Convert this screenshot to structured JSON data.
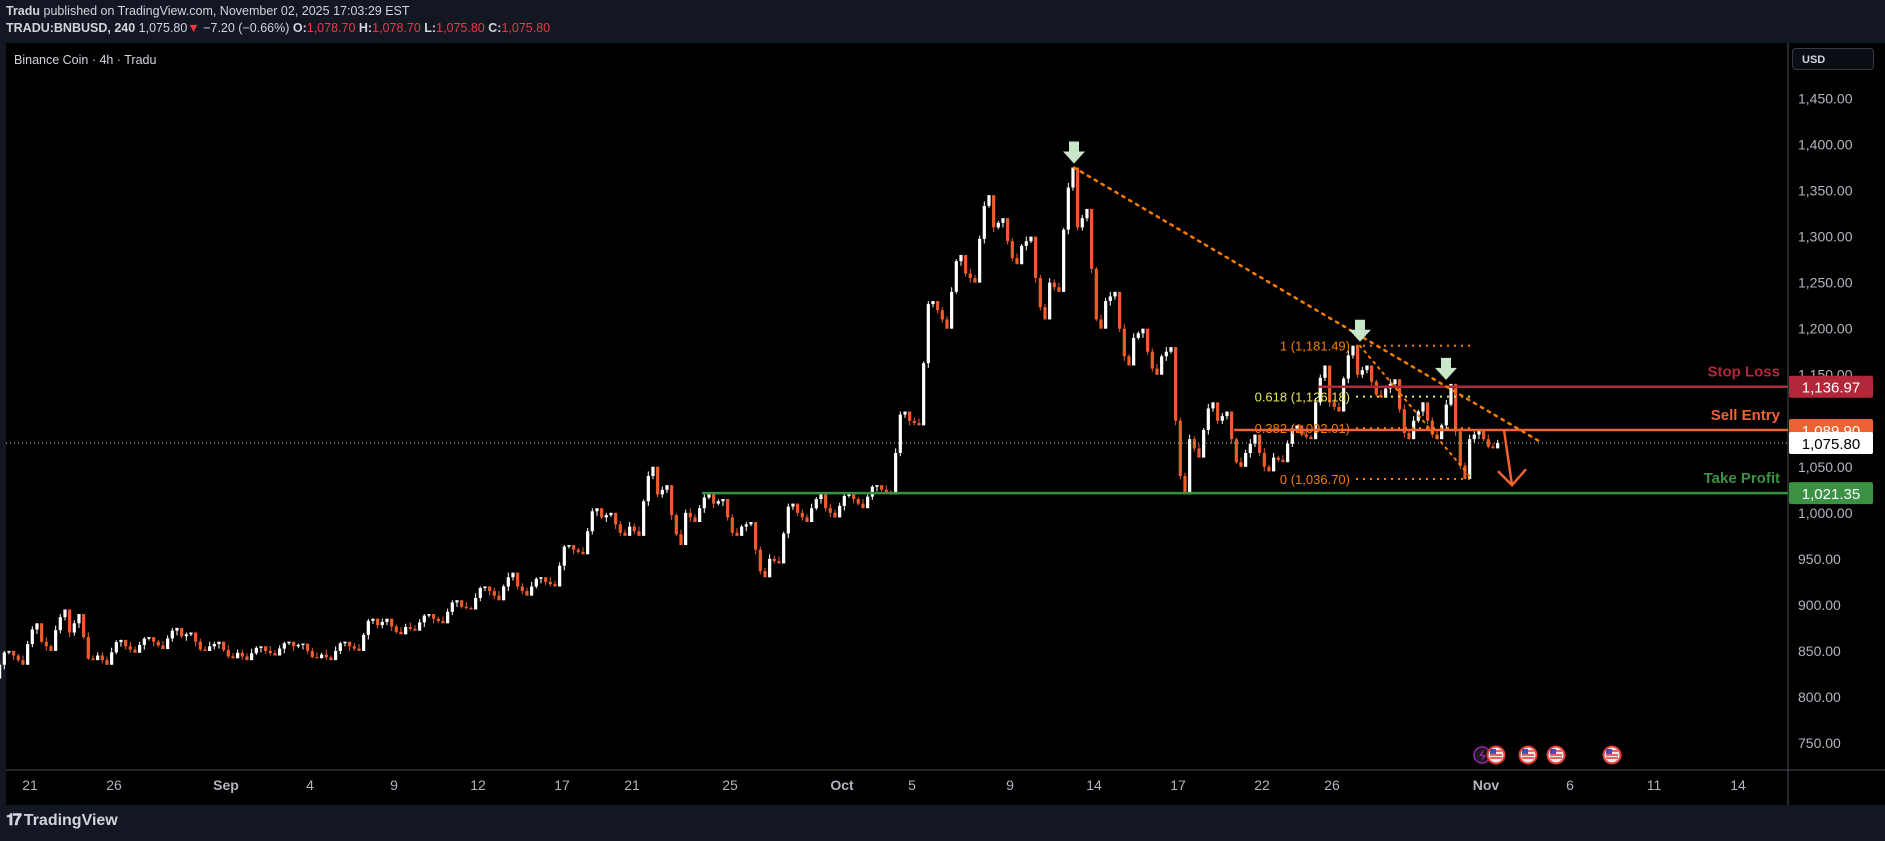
{
  "header": {
    "publisher": "Tradu",
    "published_text": "published on TradingView.com, November 02, 2025 17:03:29 EST",
    "symbol": "TRADU:BNBUSD, 240",
    "last": "1,075.80",
    "change": "−7.20 (−0.66%)",
    "o_label": "O:",
    "o": "1,078.70",
    "h_label": "H:",
    "h": "1,078.70",
    "l_label": "L:",
    "l": "1,075.80",
    "c_label": "C:",
    "c": "1,075.80"
  },
  "chart_title": "Binance Coin · 4h · Tradu",
  "currency_button": "USD",
  "footer": {
    "brand": "TradingView",
    "logo": "17"
  },
  "colors": {
    "up": "#ffffff",
    "down": "#ef5b2c",
    "stop": "#b2283a",
    "entry": "#f06231",
    "take": "#3b9144",
    "fib": "#f57c00",
    "fib618": "#e6e65c",
    "arrow": "#c8e6c9",
    "bg": "#000000"
  },
  "chart_data": {
    "type": "candlestick",
    "timeframe": "4h",
    "ylim": [
      730,
      1470
    ],
    "price_ticks": [
      "1,450.00",
      "1,400.00",
      "1,350.00",
      "1,300.00",
      "1,250.00",
      "1,200.00",
      "1,150.00",
      "1,050.00",
      "1,000.00",
      "950.00",
      "900.00",
      "850.00",
      "800.00",
      "750.00"
    ],
    "price_tick_values": [
      1450,
      1400,
      1350,
      1300,
      1250,
      1200,
      1150,
      1050,
      1000,
      950,
      900,
      850,
      800,
      750
    ],
    "time_ticks": [
      {
        "label": "21",
        "date": "2025-08-21"
      },
      {
        "label": "26",
        "date": "2025-08-26"
      },
      {
        "label": "Sep",
        "date": "2025-09-01",
        "bold": true
      },
      {
        "label": "4",
        "date": "2025-09-04"
      },
      {
        "label": "9",
        "date": "2025-09-09"
      },
      {
        "label": "12",
        "date": "2025-09-12"
      },
      {
        "label": "17",
        "date": "2025-09-17"
      },
      {
        "label": "21",
        "date": "2025-09-21"
      },
      {
        "label": "25",
        "date": "2025-09-25"
      },
      {
        "label": "Oct",
        "date": "2025-10-01",
        "bold": true
      },
      {
        "label": "5",
        "date": "2025-10-05"
      },
      {
        "label": "9",
        "date": "2025-10-09"
      },
      {
        "label": "14",
        "date": "2025-10-14"
      },
      {
        "label": "17",
        "date": "2025-10-17"
      },
      {
        "label": "22",
        "date": "2025-10-22"
      },
      {
        "label": "26",
        "date": "2025-10-26"
      },
      {
        "label": "Nov",
        "date": "2025-11-03",
        "bold": true
      },
      {
        "label": "6",
        "date": "2025-11-06"
      },
      {
        "label": "11",
        "date": "2025-11-11"
      },
      {
        "label": "14",
        "date": "2025-11-14"
      }
    ],
    "candles_daily_ohlc": [
      [
        "2025-08-20",
        830,
        850,
        820,
        845
      ],
      [
        "2025-08-21",
        845,
        880,
        835,
        860
      ],
      [
        "2025-08-22",
        860,
        895,
        850,
        870
      ],
      [
        "2025-08-25",
        870,
        890,
        840,
        845
      ],
      [
        "2025-08-26",
        845,
        862,
        835,
        855
      ],
      [
        "2025-08-27",
        855,
        865,
        848,
        860
      ],
      [
        "2025-08-28",
        860,
        875,
        852,
        866
      ],
      [
        "2025-08-29",
        866,
        870,
        850,
        855
      ],
      [
        "2025-09-01",
        855,
        860,
        842,
        848
      ],
      [
        "2025-09-02",
        848,
        855,
        840,
        850
      ],
      [
        "2025-09-03",
        850,
        860,
        845,
        855
      ],
      [
        "2025-09-04",
        855,
        858,
        842,
        846
      ],
      [
        "2025-09-05",
        846,
        860,
        840,
        855
      ],
      [
        "2025-09-08",
        855,
        885,
        850,
        878
      ],
      [
        "2025-09-09",
        878,
        885,
        868,
        876
      ],
      [
        "2025-09-10",
        876,
        890,
        872,
        885
      ],
      [
        "2025-09-11",
        885,
        905,
        880,
        898
      ],
      [
        "2025-09-12",
        898,
        920,
        895,
        915
      ],
      [
        "2025-09-15",
        915,
        935,
        905,
        920
      ],
      [
        "2025-09-16",
        920,
        930,
        910,
        925
      ],
      [
        "2025-09-17",
        925,
        965,
        920,
        960
      ],
      [
        "2025-09-18",
        960,
        1005,
        955,
        995
      ],
      [
        "2025-09-19",
        995,
        1000,
        975,
        985
      ],
      [
        "2025-09-22",
        985,
        1050,
        975,
        1020
      ],
      [
        "2025-09-23",
        1020,
        1030,
        965,
        1000
      ],
      [
        "2025-09-24",
        1000,
        1020,
        990,
        1010
      ],
      [
        "2025-09-25",
        1010,
        1015,
        975,
        985
      ],
      [
        "2025-09-26",
        985,
        990,
        930,
        950
      ],
      [
        "2025-09-29",
        950,
        1010,
        945,
        1000
      ],
      [
        "2025-09-30",
        1000,
        1020,
        990,
        1005
      ],
      [
        "2025-10-01",
        1005,
        1020,
        995,
        1015
      ],
      [
        "2025-10-02",
        1015,
        1030,
        1005,
        1025
      ],
      [
        "2025-10-03",
        1025,
        1110,
        1020,
        1100
      ],
      [
        "2025-10-06",
        1100,
        1230,
        1095,
        1220
      ],
      [
        "2025-10-07",
        1220,
        1280,
        1200,
        1260
      ],
      [
        "2025-10-08",
        1260,
        1345,
        1250,
        1310
      ],
      [
        "2025-10-09",
        1310,
        1320,
        1270,
        1290
      ],
      [
        "2025-10-10",
        1290,
        1300,
        1210,
        1250
      ],
      [
        "2025-10-13",
        1250,
        1375,
        1240,
        1310
      ],
      [
        "2025-10-14",
        1310,
        1330,
        1200,
        1230
      ],
      [
        "2025-10-15",
        1230,
        1240,
        1160,
        1190
      ],
      [
        "2025-10-16",
        1190,
        1200,
        1150,
        1170
      ],
      [
        "2025-10-17",
        1170,
        1180,
        1020,
        1080
      ],
      [
        "2025-10-20",
        1080,
        1120,
        1060,
        1100
      ],
      [
        "2025-10-21",
        1100,
        1110,
        1050,
        1065
      ],
      [
        "2025-10-22",
        1065,
        1085,
        1045,
        1060
      ],
      [
        "2025-10-23",
        1060,
        1095,
        1055,
        1085
      ],
      [
        "2025-10-24",
        1085,
        1160,
        1080,
        1120
      ],
      [
        "2025-10-27",
        1120,
        1181.49,
        1110,
        1150
      ],
      [
        "2025-10-28",
        1150,
        1160,
        1125,
        1135
      ],
      [
        "2025-10-29",
        1135,
        1145,
        1080,
        1100
      ],
      [
        "2025-10-30",
        1100,
        1120,
        1080,
        1095
      ],
      [
        "2025-10-31",
        1095,
        1140,
        1036.7,
        1080
      ],
      [
        "2025-11-03",
        1080,
        1090,
        1070,
        1075.8
      ]
    ],
    "current_price": {
      "value": 1075.8,
      "label": "1,075.80"
    },
    "levels": [
      {
        "name": "Stop Loss",
        "value": 1136.97,
        "label": "1,136.97",
        "color": "#b2283a",
        "from": "2025-10-24"
      },
      {
        "name": "Sell Entry",
        "value": 1089.9,
        "label": "1,089.90",
        "color": "#f06231",
        "from": "2025-10-21"
      },
      {
        "name": "Take Profit",
        "value": 1021.35,
        "label": "1,021.35",
        "color": "#3b9144",
        "from": "2025-09-24"
      }
    ],
    "fibonacci": [
      {
        "label": "1 (1,181.49)",
        "value": 1181.49,
        "color": "#f57c00"
      },
      {
        "label": "0.618 (1,126.18)",
        "value": 1126.18,
        "color": "#e6e65c"
      },
      {
        "label": "0.382 (1,092.01)",
        "value": 1092.01,
        "color": "#f57c00"
      },
      {
        "label": "0 (1,036.70)",
        "value": 1036.7,
        "color": "#f57c00"
      }
    ],
    "fib_range": [
      "2025-10-27",
      "2025-10-31"
    ],
    "trendline": [
      [
        "2025-10-13",
        1375
      ],
      [
        "2025-11-05",
        1076
      ]
    ],
    "inner_trendline": [
      [
        "2025-10-27",
        1181.49
      ],
      [
        "2025-10-31",
        1036.7
      ]
    ],
    "down_arrows": [
      [
        "2025-10-13",
        1375
      ],
      [
        "2025-10-27",
        1181.49
      ],
      [
        "2025-10-30",
        1140
      ]
    ],
    "projection_arrow": [
      [
        "2025-11-04",
        1089.9
      ],
      [
        "2025-11-04",
        1030
      ]
    ],
    "events": [
      {
        "type": "lightning-icon",
        "date": "2025-11-03"
      },
      {
        "type": "us-flag-icon",
        "date": "2025-11-03"
      },
      {
        "type": "us-flag-icon",
        "date": "2025-11-04"
      },
      {
        "type": "us-flag-icon",
        "date": "2025-11-05"
      },
      {
        "type": "us-flag-icon",
        "date": "2025-11-07"
      }
    ]
  }
}
